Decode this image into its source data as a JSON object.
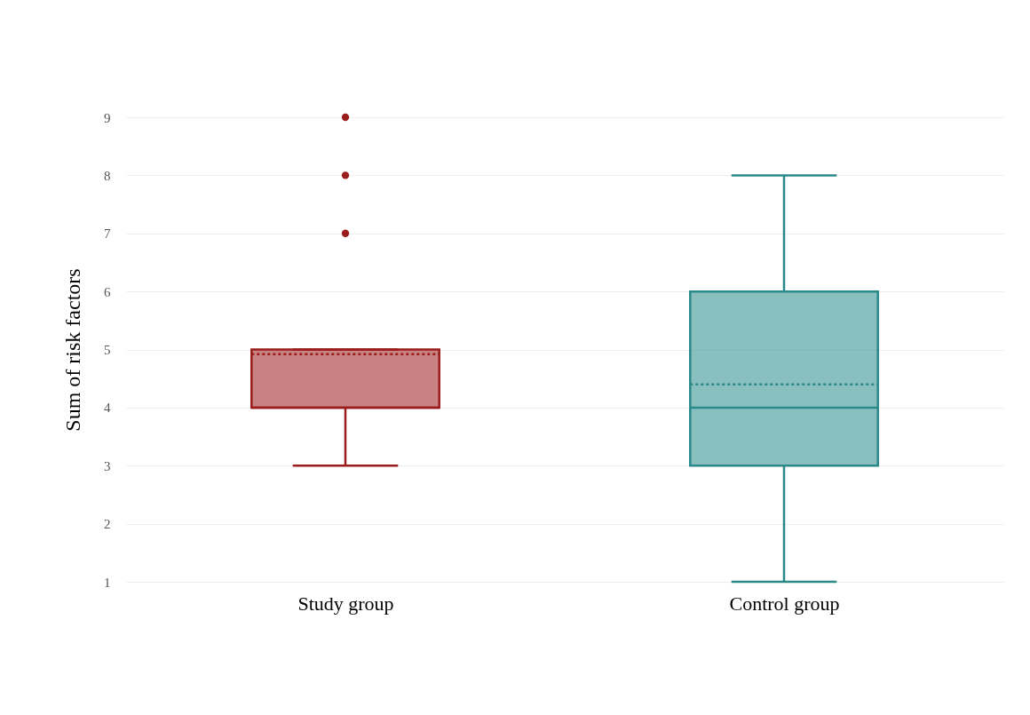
{
  "chart_data": {
    "type": "box",
    "ylabel": "Sum of risk factors",
    "categories": [
      "Study group",
      "Control group"
    ],
    "boxes": [
      {
        "low": 3,
        "q1": 4,
        "median": 4,
        "q3": 5,
        "high": 5,
        "mean": 4.92,
        "outliers": [
          7,
          8,
          9
        ]
      },
      {
        "low": 1,
        "q1": 3,
        "median": 4,
        "q3": 6,
        "high": 8,
        "mean": 4.4
      }
    ],
    "colors": [
      "#9b1c1c",
      "#2a8a8a"
    ],
    "ylim": [
      1,
      9
    ],
    "yticks": [
      1,
      2,
      3,
      4,
      5,
      6,
      7,
      8,
      9
    ],
    "grid": "y",
    "legend": false
  }
}
